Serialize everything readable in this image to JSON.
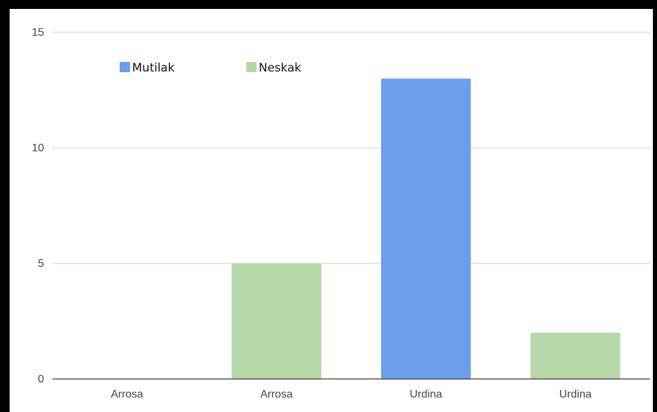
{
  "chart_data": {
    "type": "bar",
    "categories": [
      "Arrosa",
      "Arrosa",
      "Urdina",
      "Urdina"
    ],
    "series": [
      {
        "name": "Mutilak",
        "color": "#6d9eeb",
        "values": [
          0,
          null,
          13,
          null
        ]
      },
      {
        "name": "Neskak",
        "color": "#b6d7a8",
        "values": [
          null,
          5,
          null,
          2
        ]
      }
    ],
    "ylim": [
      0,
      15
    ],
    "yticks": [
      0,
      5,
      10,
      15
    ],
    "grid": true,
    "legend_position": "top-left",
    "title": "",
    "xlabel": "",
    "ylabel": ""
  }
}
